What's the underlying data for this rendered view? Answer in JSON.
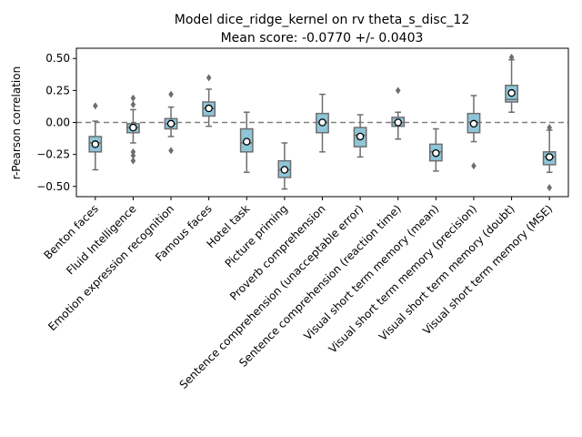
{
  "chart_data": {
    "type": "box",
    "title_line1": "Model dice_ridge_kernel on rv theta_s_disc_12",
    "title_line2": "Mean score: -0.0770 +/- 0.0403",
    "xlabel": "",
    "ylabel": "r-Pearson correlation",
    "ylim": [
      -0.58,
      0.58
    ],
    "yticks": [
      0.5,
      0.25,
      0.0,
      -0.25,
      -0.5
    ],
    "ytick_labels": [
      "0.50",
      "0.25",
      "0.00",
      "−0.25",
      "−0.50"
    ],
    "reference_line": 0.0,
    "box_color": "#8fc5d8",
    "categories": [
      {
        "label": "Benton faces",
        "q1": -0.23,
        "median": -0.16,
        "q3": -0.11,
        "wlow": -0.37,
        "whigh": 0.01,
        "mean": -0.17,
        "outliers": [
          0.13
        ]
      },
      {
        "label": "Fluid Intelligence",
        "q1": -0.08,
        "median": -0.04,
        "q3": -0.01,
        "wlow": -0.16,
        "whigh": 0.1,
        "mean": -0.04,
        "outliers": [
          0.19,
          0.14,
          -0.23,
          -0.26,
          -0.3
        ]
      },
      {
        "label": "Emotion expression recognition",
        "q1": -0.05,
        "median": -0.01,
        "q3": 0.03,
        "wlow": -0.11,
        "whigh": 0.12,
        "mean": -0.01,
        "outliers": [
          0.22,
          -0.22
        ]
      },
      {
        "label": "Famous faces",
        "q1": 0.05,
        "median": 0.11,
        "q3": 0.16,
        "wlow": -0.03,
        "whigh": 0.26,
        "mean": 0.11,
        "outliers": [
          0.35
        ]
      },
      {
        "label": "Hotel task",
        "q1": -0.23,
        "median": -0.16,
        "q3": -0.05,
        "wlow": -0.39,
        "whigh": 0.08,
        "mean": -0.15,
        "outliers": []
      },
      {
        "label": "Picture priming",
        "q1": -0.43,
        "median": -0.37,
        "q3": -0.3,
        "wlow": -0.52,
        "whigh": -0.16,
        "mean": -0.37,
        "outliers": []
      },
      {
        "label": "Proverb comprehension",
        "q1": -0.08,
        "median": 0.0,
        "q3": 0.07,
        "wlow": -0.23,
        "whigh": 0.22,
        "mean": 0.0,
        "outliers": []
      },
      {
        "label": "Sentence comprehension (unacceptable error)",
        "q1": -0.19,
        "median": -0.1,
        "q3": -0.04,
        "wlow": -0.27,
        "whigh": 0.06,
        "mean": -0.11,
        "outliers": []
      },
      {
        "label": "Sentence comprehension (reaction time)",
        "q1": -0.03,
        "median": 0.0,
        "q3": 0.04,
        "wlow": -0.13,
        "whigh": 0.08,
        "mean": 0.0,
        "outliers": [
          0.25
        ]
      },
      {
        "label": "Visual short term memory (mean)",
        "q1": -0.3,
        "median": -0.23,
        "q3": -0.17,
        "wlow": -0.38,
        "whigh": -0.05,
        "mean": -0.24,
        "outliers": []
      },
      {
        "label": "Visual short term memory (precision)",
        "q1": -0.08,
        "median": 0.0,
        "q3": 0.07,
        "wlow": -0.15,
        "whigh": 0.21,
        "mean": -0.01,
        "outliers": [
          -0.34
        ]
      },
      {
        "label": "Visual short term memory (doubt)",
        "q1": 0.16,
        "median": 0.18,
        "q3": 0.29,
        "wlow": 0.08,
        "whigh": 0.49,
        "mean": 0.23,
        "outliers": [
          0.51
        ]
      },
      {
        "label": "Visual short term memory (MSE)",
        "q1": -0.33,
        "median": -0.27,
        "q3": -0.23,
        "wlow": -0.39,
        "whigh": -0.06,
        "mean": -0.27,
        "outliers": [
          -0.04,
          -0.51
        ]
      }
    ]
  }
}
